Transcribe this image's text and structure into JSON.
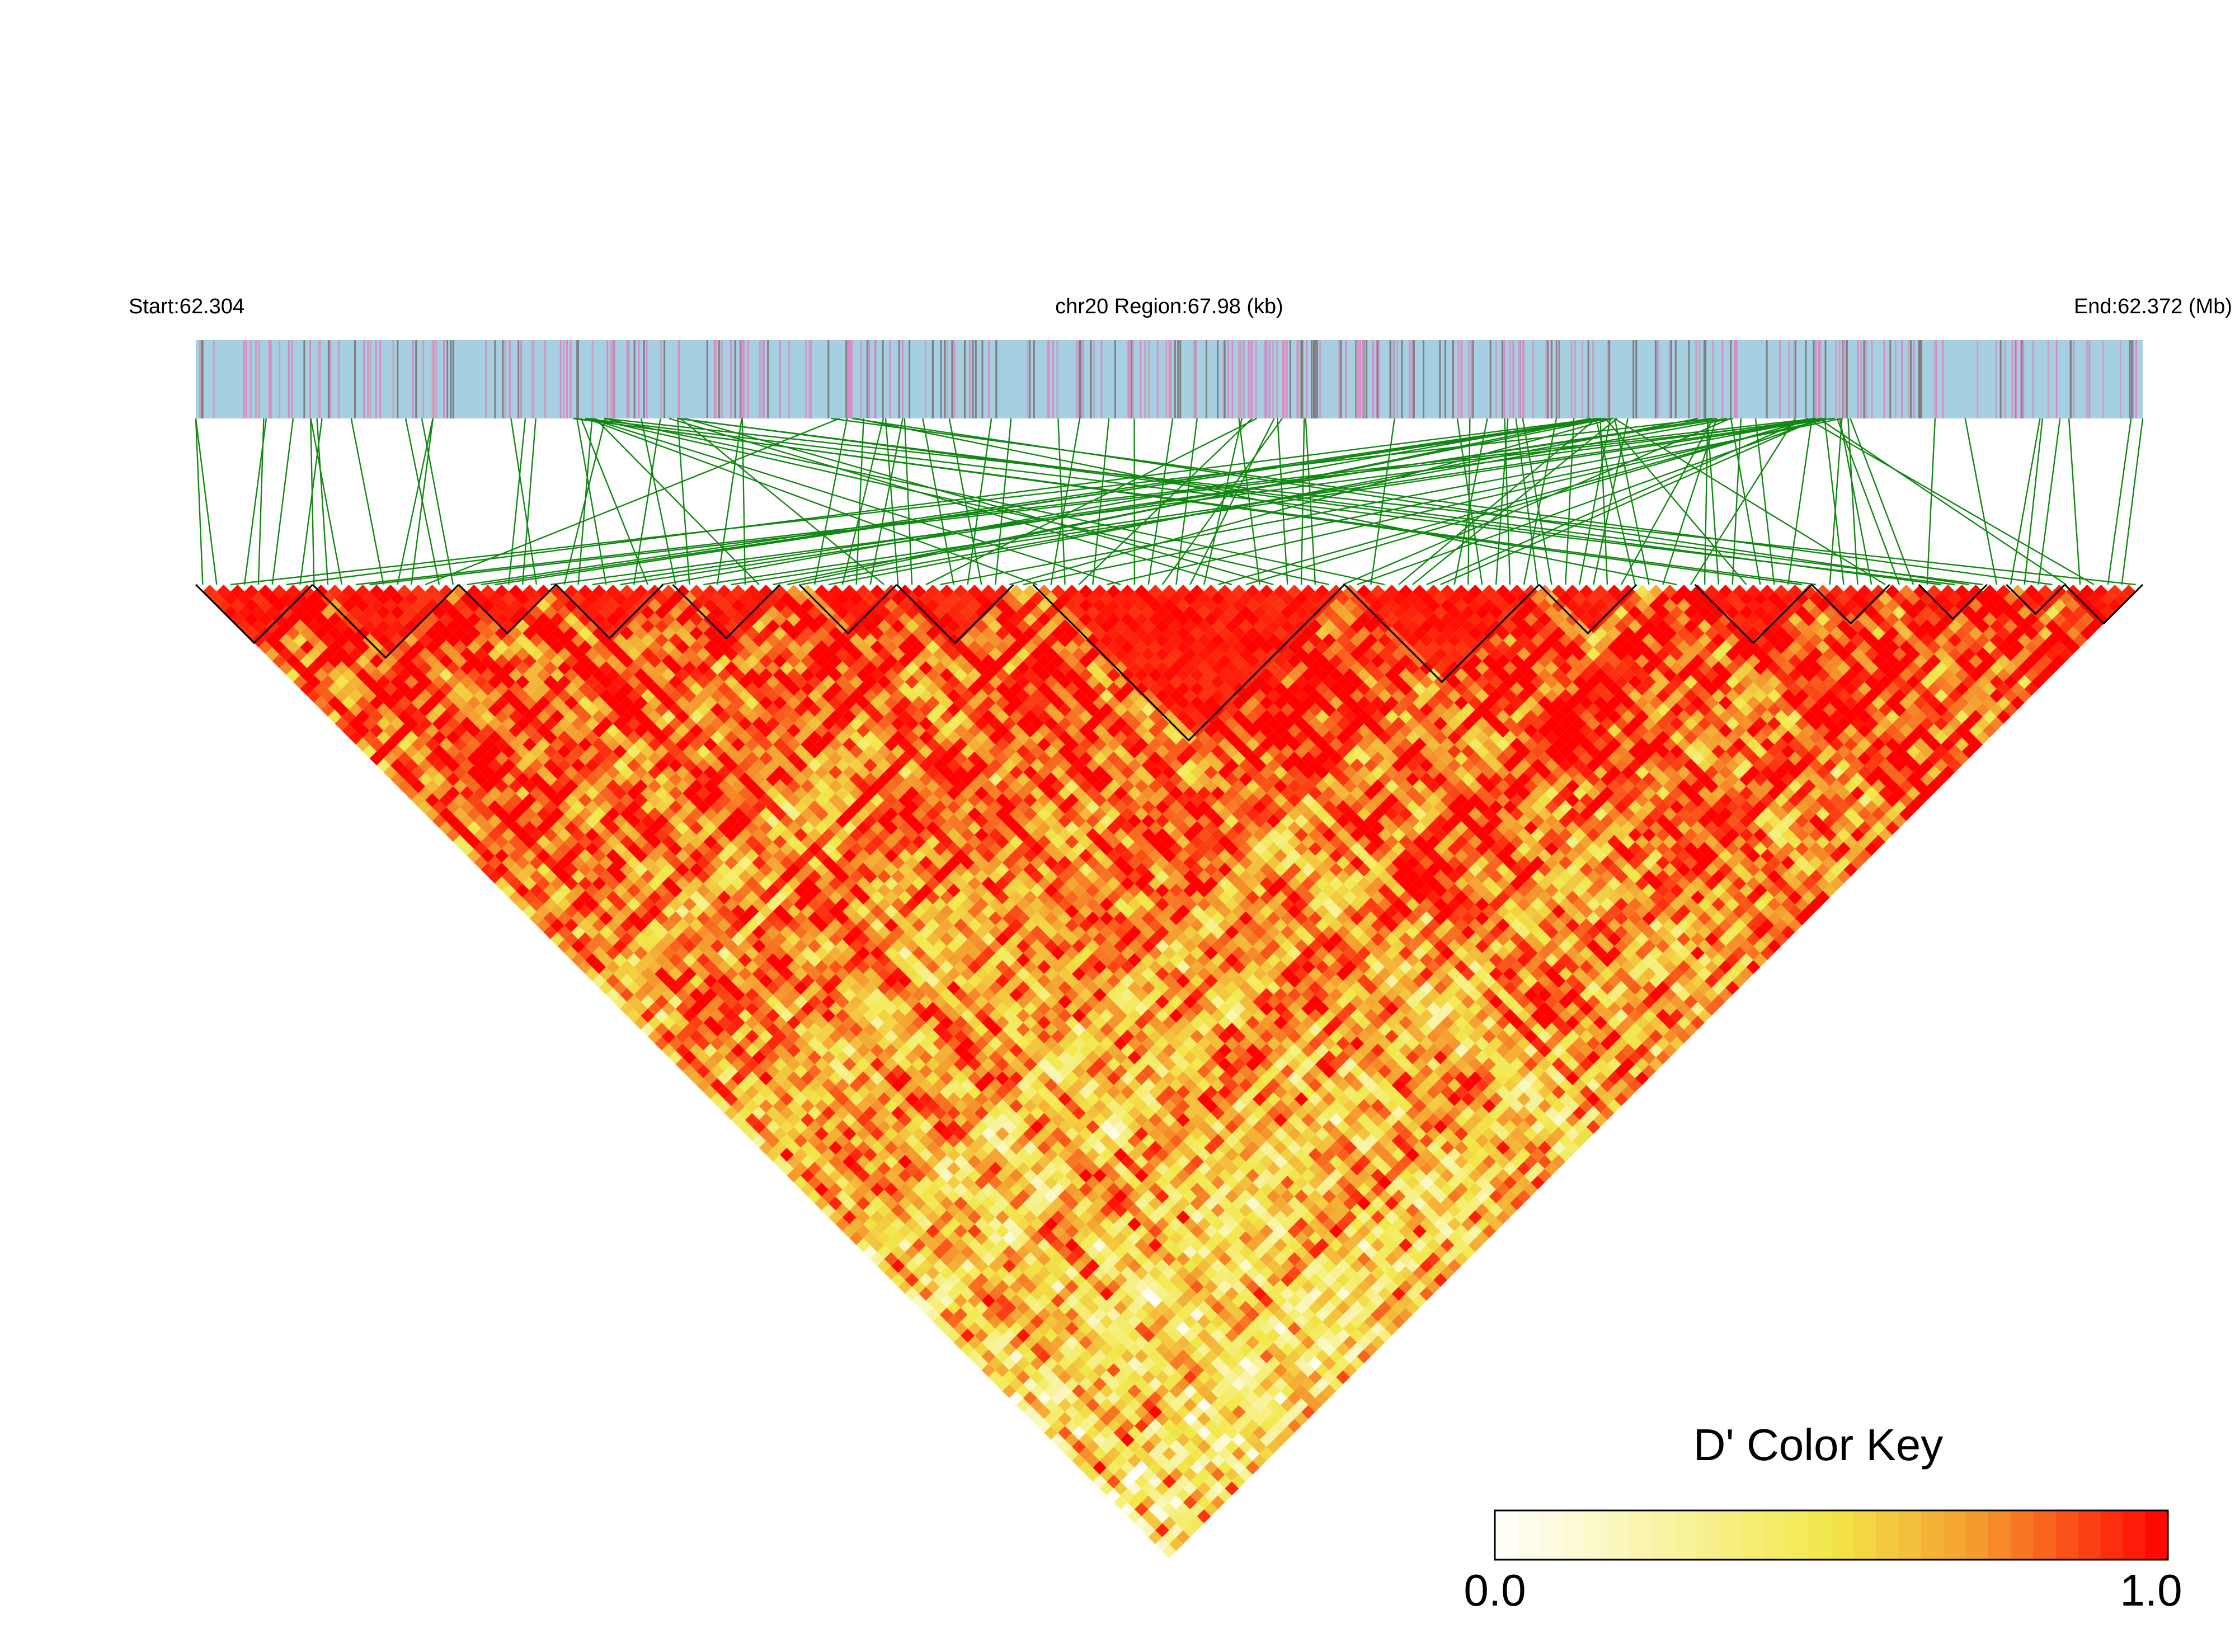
{
  "header": {
    "start_label": "Start:62.304",
    "region_label": "chr20 Region:67.98 (kb)",
    "end_label": "End:62.372 (Mb)"
  },
  "chart_data": {
    "type": "heatmap",
    "subtype": "linkage-disequilibrium-triangle",
    "statistic": "D'",
    "chromosome": "chr20",
    "start_mb": 62.304,
    "end_mb": 62.372,
    "region_kb": 67.98,
    "value_range": [
      0.0,
      1.0
    ],
    "color_key": {
      "title": "D' Color Key",
      "min_label": "0.0",
      "max_label": "1.0",
      "stops": [
        "#ffffff",
        "#f2e84a",
        "#f59a2e",
        "#ff0000"
      ]
    },
    "track_colors": {
      "gene_bar": "#a6cfe2",
      "snp_tick": "#d98ac6",
      "dense_tick": "#7f7f7f",
      "connector": "#118811",
      "block_outline": "#000000"
    },
    "ld_blocks_fraction": [
      [
        0.0,
        0.06
      ],
      [
        0.06,
        0.135
      ],
      [
        0.135,
        0.185
      ],
      [
        0.185,
        0.24
      ],
      [
        0.245,
        0.3
      ],
      [
        0.31,
        0.36
      ],
      [
        0.36,
        0.42
      ],
      [
        0.43,
        0.59
      ],
      [
        0.59,
        0.69
      ],
      [
        0.69,
        0.74
      ],
      [
        0.77,
        0.83
      ],
      [
        0.83,
        0.87
      ],
      [
        0.885,
        0.92
      ],
      [
        0.93,
        0.96
      ],
      [
        0.96,
        1.0
      ]
    ]
  },
  "colorkey": {
    "title": "D' Color Key",
    "min": "0.0",
    "max": "1.0"
  }
}
